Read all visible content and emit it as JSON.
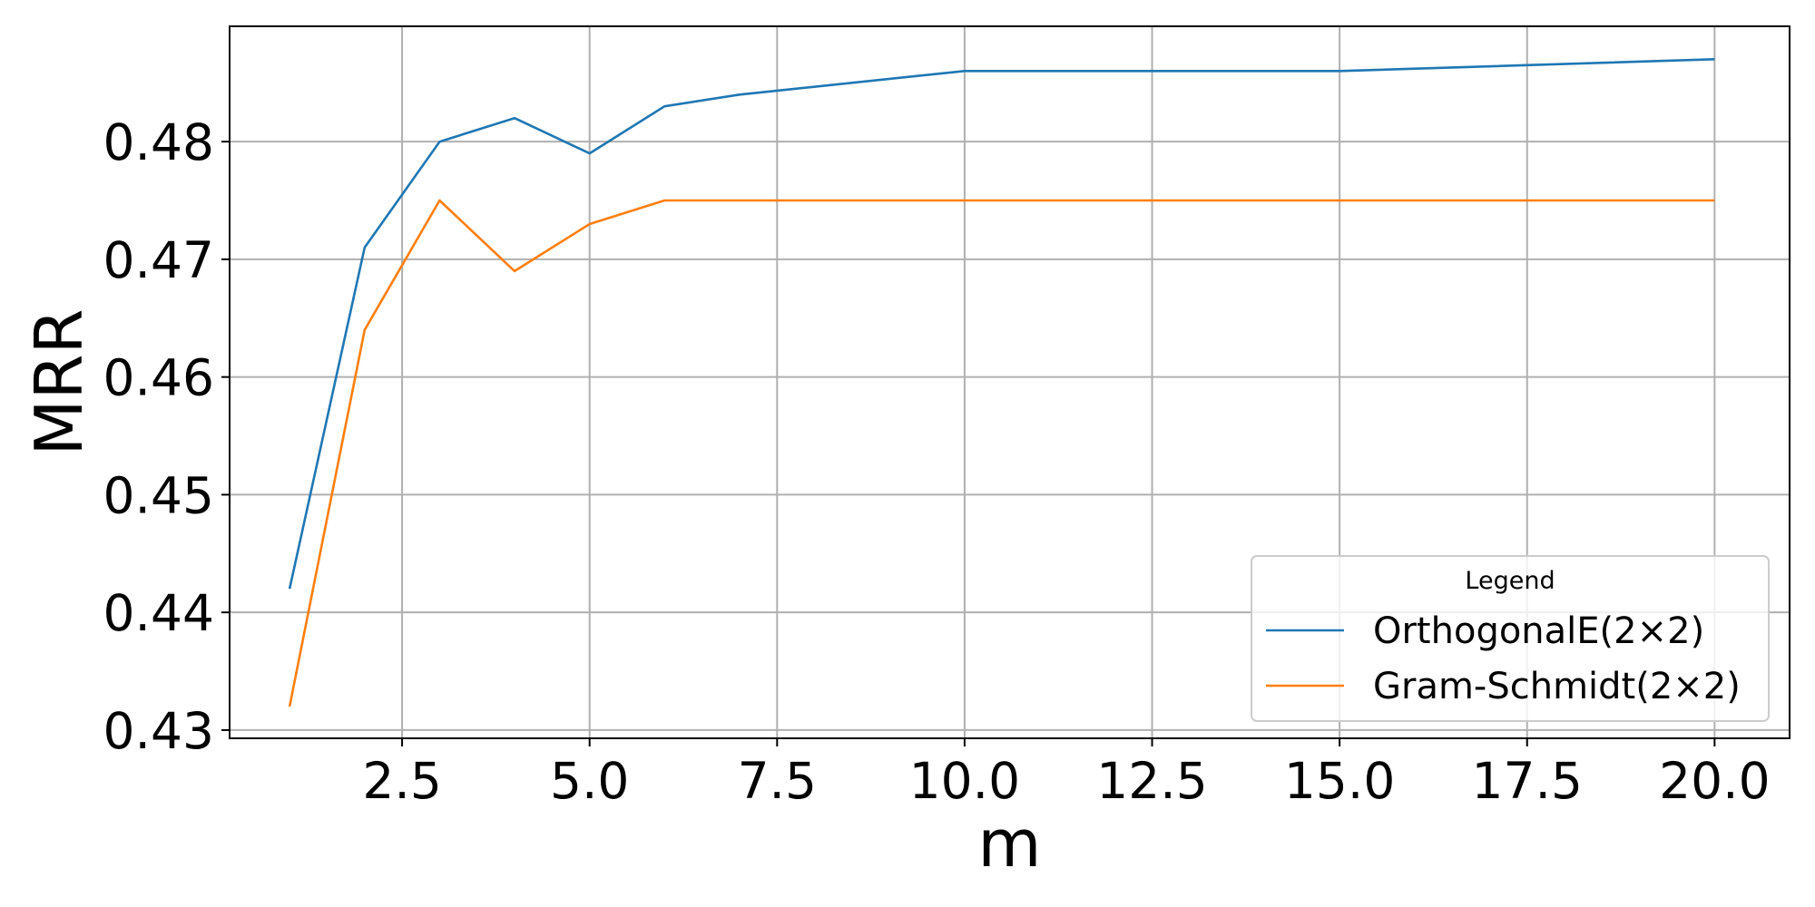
{
  "chart_data": {
    "type": "line",
    "title": "",
    "xlabel": "m",
    "ylabel": "MRR",
    "xlim": [
      0.2,
      21.0
    ],
    "ylim": [
      0.4293,
      0.4898
    ],
    "x_ticks": [
      2.5,
      5.0,
      7.5,
      10.0,
      12.5,
      15.0,
      17.5,
      20.0
    ],
    "x_tick_labels": [
      "2.5",
      "5.0",
      "7.5",
      "10.0",
      "12.5",
      "15.0",
      "17.5",
      "20.0"
    ],
    "y_ticks": [
      0.43,
      0.44,
      0.45,
      0.46,
      0.47,
      0.48
    ],
    "y_tick_labels": [
      "0.43",
      "0.44",
      "0.45",
      "0.46",
      "0.47",
      "0.48"
    ],
    "grid": true,
    "legend": {
      "title": "Legend",
      "position": "lower-right"
    },
    "x": [
      1,
      2,
      3,
      4,
      5,
      6,
      7,
      10,
      15,
      20
    ],
    "series": [
      {
        "name": "OrthogonalE(2×2)",
        "color": "#1f77b4",
        "values": [
          0.442,
          0.471,
          0.48,
          0.482,
          0.479,
          0.483,
          0.484,
          0.486,
          0.486,
          0.487
        ]
      },
      {
        "name": "Gram-Schmidt(2×2)",
        "color": "#ff7f0e",
        "values": [
          0.432,
          0.464,
          0.475,
          0.469,
          0.473,
          0.475,
          0.475,
          0.475,
          0.475,
          0.475
        ]
      }
    ]
  }
}
